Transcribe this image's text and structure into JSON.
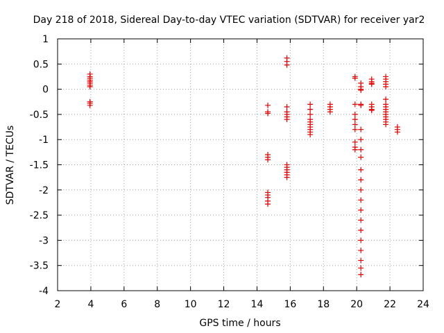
{
  "chart_data": {
    "type": "scatter",
    "title": "Day 218 of 2018, Sidereal Day-to-day VTEC variation (SDTVAR) for receiver yar2",
    "xlabel": "GPS time / hours",
    "ylabel": "SDTVAR / TECUs",
    "xlim": [
      2,
      24
    ],
    "ylim": [
      -4,
      1
    ],
    "x_ticks": [
      "2",
      "4",
      "6",
      "8",
      "10",
      "12",
      "14",
      "16",
      "18",
      "20",
      "22",
      "24"
    ],
    "y_ticks": [
      "1",
      "0.5",
      "0",
      "-0.5",
      "-1",
      "-1.5",
      "-2",
      "-2.5",
      "-3",
      "-3.5",
      "-4"
    ],
    "grid": true,
    "marker": "plus",
    "color": "#e00000",
    "clusters": [
      {
        "x": 3.95,
        "y": [
          0.3,
          0.25,
          0.22,
          0.18,
          0.15,
          0.12,
          0.08,
          0.05,
          -0.25,
          -0.28,
          -0.32
        ]
      },
      {
        "x": 14.65,
        "y": [
          -0.32,
          -0.45,
          -0.48,
          -1.3,
          -1.35,
          -1.4,
          -2.05,
          -2.1,
          -2.15,
          -2.22,
          -2.28
        ]
      },
      {
        "x": 15.8,
        "y": [
          0.62,
          0.55,
          0.48,
          -0.35,
          -0.45,
          -0.5,
          -0.55,
          -0.6,
          -1.5,
          -1.55,
          -1.6,
          -1.65,
          -1.7,
          -1.75
        ]
      },
      {
        "x": 17.2,
        "y": [
          -0.3,
          -0.4,
          -0.5,
          -0.6,
          -0.65,
          -0.7,
          -0.75,
          -0.8,
          -0.85,
          -0.9
        ]
      },
      {
        "x": 18.4,
        "y": [
          -0.3,
          -0.35,
          -0.4,
          -0.45
        ]
      },
      {
        "x": 19.9,
        "y": [
          0.25,
          0.22,
          -0.3,
          -0.5,
          -0.6,
          -0.7,
          -0.8,
          -1.05,
          -1.15,
          -1.2
        ]
      },
      {
        "x": 20.25,
        "y": [
          0.12,
          0.05,
          0.0,
          -0.02,
          -0.3,
          -0.32,
          -0.8,
          -1.0,
          -1.2,
          -1.35,
          -1.6,
          -1.8,
          -2.0,
          -2.2,
          -2.4,
          -2.6,
          -2.8,
          -3.0,
          -3.2,
          -3.4,
          -3.55,
          -3.68
        ]
      },
      {
        "x": 20.9,
        "y": [
          0.2,
          0.15,
          0.12,
          0.1,
          -0.3,
          -0.35,
          -0.4,
          -0.42
        ]
      },
      {
        "x": 21.75,
        "y": [
          0.25,
          0.2,
          0.15,
          0.1,
          0.05,
          -0.2,
          -0.3,
          -0.35,
          -0.4,
          -0.45,
          -0.5,
          -0.55,
          -0.6,
          -0.65,
          -0.7
        ]
      },
      {
        "x": 22.45,
        "y": [
          -0.75,
          -0.8,
          -0.85
        ]
      }
    ]
  }
}
